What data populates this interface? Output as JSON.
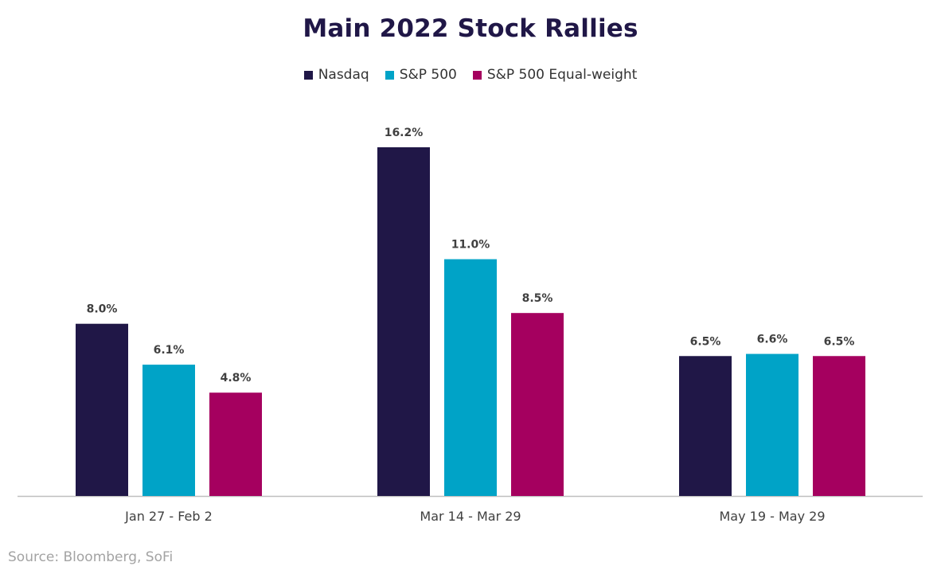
{
  "chart_data": {
    "type": "bar",
    "title": "Main 2022 Stock Rallies",
    "xlabel": "",
    "ylabel": "",
    "ylim": [
      0,
      16.2
    ],
    "grid": false,
    "legend_position": "top-center",
    "categories": [
      "Jan 27 - Feb 2",
      "Mar 14 - Mar 29",
      "May 19 - May 29"
    ],
    "series": [
      {
        "name": "Nasdaq",
        "color": "#201747",
        "values": [
          8.0,
          16.2,
          6.5
        ],
        "labels": [
          "8.0%",
          "16.2%",
          "6.5%"
        ]
      },
      {
        "name": "S&P 500",
        "color": "#00a3c7",
        "values": [
          6.1,
          11.0,
          6.6
        ],
        "labels": [
          "6.1%",
          "11.0%",
          "6.6%"
        ]
      },
      {
        "name": "S&P 500 Equal-weight",
        "color": "#a5005f",
        "values": [
          4.8,
          8.5,
          6.5
        ],
        "labels": [
          "4.8%",
          "8.5%",
          "6.5%"
        ]
      }
    ]
  },
  "source": "Source: Bloomberg, SoFi"
}
